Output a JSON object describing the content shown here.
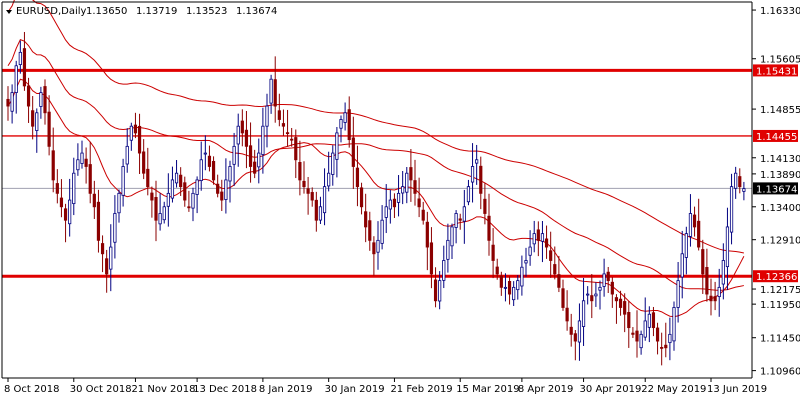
{
  "header": {
    "symbol_label": "EURUSD,Daily",
    "ohlc": [
      "1.13650",
      "1.13719",
      "1.13523",
      "1.13674"
    ],
    "menu_icon": "triangle-down-icon"
  },
  "chart_data": {
    "type": "candlestick",
    "title": "EURUSD,Daily",
    "x_ticks": [
      "8 Oct 2018",
      "30 Oct 2018",
      "21 Nov 2018",
      "13 Dec 2018",
      "8 Jan 2019",
      "30 Jan 2019",
      "21 Feb 2019",
      "15 Mar 2019",
      "8 Apr 2019",
      "30 Apr 2019",
      "22 May 2019",
      "13 Jun 2019"
    ],
    "y_ticks": [
      "1.16330",
      "1.15605",
      "1.14855",
      "1.14130",
      "1.13890",
      "1.13400",
      "1.12910",
      "1.12175",
      "1.11950",
      "1.11450",
      "1.10960"
    ],
    "ylim": [
      1.1085,
      1.1645
    ],
    "candles_count": 180,
    "colors": {
      "bull": "#000080",
      "bear": "#8b0000",
      "ma": "#cc0000",
      "level": "#e00000",
      "current_price_line": "#a0a0b0",
      "axis": "#000000"
    },
    "price_levels": [
      {
        "label": "1.15431",
        "value": 1.15431,
        "thickness": "thick"
      },
      {
        "label": "1.14455",
        "value": 1.14455,
        "thickness": "thin"
      },
      {
        "label": "1.12366",
        "value": 1.12366,
        "thickness": "thick"
      }
    ],
    "current_price": {
      "label": "1.13674",
      "value": 1.13674
    },
    "series": [
      {
        "kind": "close",
        "values": [
          1.149,
          1.151,
          1.155,
          1.157,
          1.152,
          1.149,
          1.146,
          1.148,
          1.151,
          1.148,
          1.143,
          1.138,
          1.136,
          1.134,
          1.132,
          1.135,
          1.139,
          1.141,
          1.142,
          1.14,
          1.136,
          1.134,
          1.129,
          1.127,
          1.124,
          1.128,
          1.133,
          1.136,
          1.14,
          1.143,
          1.146,
          1.145,
          1.142,
          1.139,
          1.137,
          1.135,
          1.132,
          1.133,
          1.134,
          1.136,
          1.138,
          1.139,
          1.137,
          1.135,
          1.134,
          1.136,
          1.138,
          1.141,
          1.142,
          1.14,
          1.138,
          1.136,
          1.135,
          1.138,
          1.14,
          1.143,
          1.146,
          1.145,
          1.143,
          1.14,
          1.139,
          1.142,
          1.146,
          1.149,
          1.153,
          1.149,
          1.147,
          1.146,
          1.145,
          1.144,
          1.141,
          1.138,
          1.137,
          1.136,
          1.135,
          1.132,
          1.134,
          1.137,
          1.139,
          1.142,
          1.145,
          1.147,
          1.148,
          1.144,
          1.14,
          1.137,
          1.134,
          1.131,
          1.129,
          1.127,
          1.129,
          1.132,
          1.134,
          1.135,
          1.134,
          1.136,
          1.137,
          1.139,
          1.138,
          1.136,
          1.134,
          1.132,
          1.128,
          1.124,
          1.12,
          1.123,
          1.126,
          1.129,
          1.131,
          1.133,
          1.132,
          1.134,
          1.137,
          1.14,
          1.141,
          1.136,
          1.133,
          1.129,
          1.126,
          1.124,
          1.122,
          1.122,
          1.121,
          1.122,
          1.123,
          1.125,
          1.126,
          1.128,
          1.13,
          1.129,
          1.13,
          1.128,
          1.126,
          1.124,
          1.122,
          1.119,
          1.117,
          1.115,
          1.114,
          1.117,
          1.12,
          1.121,
          1.12,
          1.121,
          1.122,
          1.124,
          1.123,
          1.121,
          1.12,
          1.119,
          1.118,
          1.116,
          1.115,
          1.114,
          1.115,
          1.117,
          1.118,
          1.116,
          1.114,
          1.113,
          1.113,
          1.115,
          1.119,
          1.123,
          1.127,
          1.13,
          1.133,
          1.131,
          1.128,
          1.124,
          1.121,
          1.12,
          1.12,
          1.122,
          1.126,
          1.131,
          1.137,
          1.139,
          1.137,
          1.1367
        ]
      }
    ]
  }
}
